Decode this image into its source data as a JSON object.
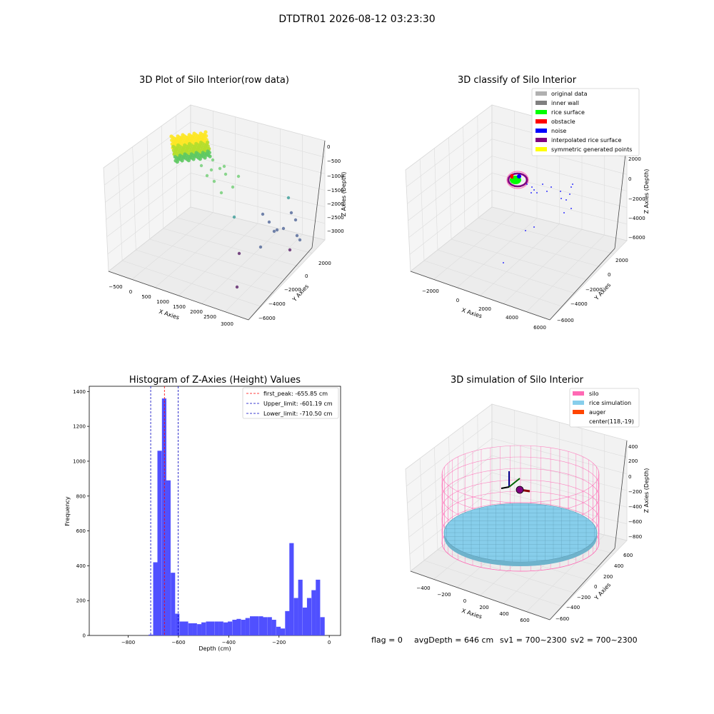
{
  "suptitle": "DTDTR01 2026-08-12 03:23:30",
  "status": {
    "flag": "flag = 0",
    "avg": "avgDepth = 646 cm",
    "sv1": "sv1 = 700~2300",
    "sv2": "sv2 = 700~2300"
  },
  "chart_data": [
    {
      "type": "scatter3d",
      "title": "3D Plot of Silo Interior(row data)",
      "xlabel": "X Axies",
      "ylabel": "Y Axies",
      "zlabel": "Z Axies (Depth)",
      "x_ticks": [
        "−500",
        "0",
        "500",
        "1000",
        "1500",
        "2000",
        "2500",
        "3000"
      ],
      "y_ticks": [
        "2000",
        "0",
        "−2000",
        "−4000",
        "−6000"
      ],
      "z_ticks": [
        "0",
        "−500",
        "−1000",
        "−1500",
        "−2000",
        "−2500",
        "−3000"
      ],
      "colormap": [
        "#fde725",
        "#5ec962",
        "#21918c",
        "#3b528b",
        "#440154"
      ],
      "grid": true
    },
    {
      "type": "scatter3d",
      "title": "3D classify of Silo Interior",
      "xlabel": "X Axies",
      "ylabel": "Y Axies",
      "zlabel": "Z Axies (Depth)",
      "x_ticks": [
        "−2000",
        "0",
        "2000",
        "4000",
        "6000"
      ],
      "y_ticks": [
        "2000",
        "0",
        "−2000",
        "−4000",
        "−6000"
      ],
      "z_ticks": [
        "2000",
        "0",
        "−2000",
        "−4000",
        "−6000"
      ],
      "legend_position": "top-right",
      "legend": [
        {
          "name": "original data",
          "color": "#b0b0b0"
        },
        {
          "name": "inner wall",
          "color": "#808080"
        },
        {
          "name": "rice surface",
          "color": "#00ff00"
        },
        {
          "name": "obstacle",
          "color": "#ff0000"
        },
        {
          "name": "noise",
          "color": "#0000ff"
        },
        {
          "name": "interpolated rice surface",
          "color": "#800080"
        },
        {
          "name": "symmetric generated points",
          "color": "#ffff00"
        }
      ],
      "grid": true
    },
    {
      "type": "bar",
      "title": "Histogram of Z-Axies (Height) Values",
      "xlabel": "Depth (cm)",
      "ylabel": "Frequency",
      "xlim": [
        -955,
        45
      ],
      "ylim": [
        0,
        1430
      ],
      "x_ticks": [
        -800,
        -600,
        -400,
        -200,
        0
      ],
      "y_ticks": [
        0,
        200,
        400,
        600,
        800,
        1000,
        1200,
        1400
      ],
      "bar_color": "#5050ff",
      "bar_width": 17.5,
      "x": [
        -710,
        -692,
        -675,
        -657,
        -640,
        -622,
        -605,
        -587,
        -570,
        -552,
        -535,
        -517,
        -500,
        -482,
        -465,
        -447,
        -430,
        -412,
        -395,
        -377,
        -360,
        -342,
        -325,
        -307,
        -290,
        -272,
        -255,
        -237,
        -220,
        -202,
        -185,
        -167,
        -150,
        -132,
        -115,
        -97,
        -80,
        -62,
        -45,
        -27,
        -10
      ],
      "values": [
        5,
        420,
        1060,
        1360,
        890,
        360,
        125,
        80,
        80,
        70,
        70,
        65,
        75,
        80,
        80,
        80,
        80,
        75,
        80,
        90,
        95,
        90,
        100,
        110,
        110,
        110,
        105,
        105,
        90,
        50,
        40,
        140,
        530,
        215,
        320,
        160,
        215,
        260,
        320,
        105,
        0
      ],
      "lines": [
        {
          "name": "first_peak: -655.85 cm",
          "value": -655.85,
          "color": "#ff0000"
        },
        {
          "name": "Upper_limit: -601.19 cm",
          "value": -601.19,
          "color": "#0000c0"
        },
        {
          "name": "Lower_limit: -710.50 cm",
          "value": -710.5,
          "color": "#0000c0"
        }
      ],
      "legend_position": "top-right"
    },
    {
      "type": "surface3d",
      "title": "3D simulation of Silo Interior",
      "xlabel": "X Axies",
      "ylabel": "Y Axies",
      "zlabel": "Z Axies (Depth)",
      "x_ticks": [
        "−400",
        "−200",
        "0",
        "200",
        "400",
        "600"
      ],
      "y_ticks": [
        "600",
        "400",
        "200",
        "0",
        "−200",
        "−400",
        "−600"
      ],
      "z_ticks": [
        "400",
        "200",
        "0",
        "−200",
        "−400",
        "−600",
        "−800"
      ],
      "legend_position": "top-right",
      "legend": [
        {
          "name": "silo",
          "color": "#ff69b4"
        },
        {
          "name": "rice simulation",
          "color": "#87ceeb"
        },
        {
          "name": "auger",
          "color": "#ff4500"
        },
        {
          "name": "center(118,-19)",
          "color": ""
        }
      ],
      "grid": true
    }
  ]
}
